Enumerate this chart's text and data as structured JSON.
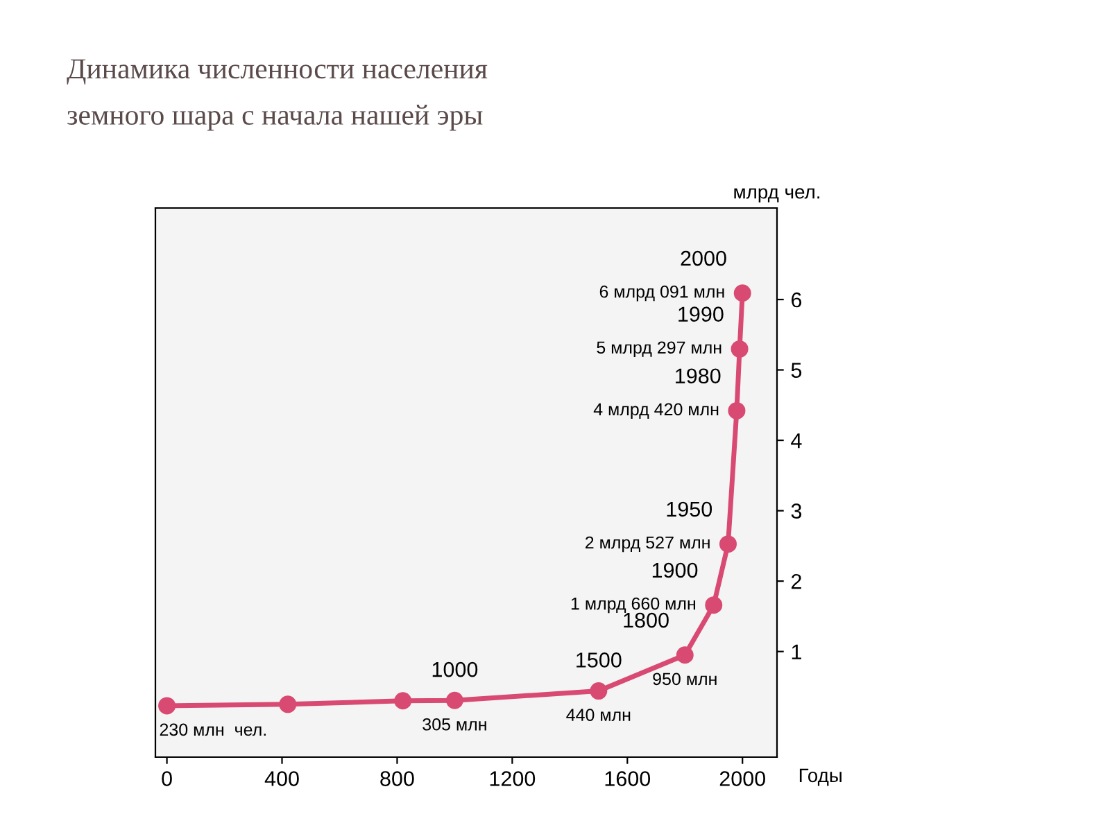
{
  "chart_data": {
    "type": "line",
    "title": "Динамика численности населения\nземного шара с начала нашей эры",
    "xlabel": "Годы",
    "ylabel": "млрд чел.",
    "x": [
      0,
      420,
      820,
      1000,
      1500,
      1800,
      1900,
      1950,
      1980,
      1990,
      2000
    ],
    "series": [
      {
        "color": "#d94a72",
        "values": [
          0.23,
          0.25,
          0.3,
          0.305,
          0.44,
          0.95,
          1.66,
          2.527,
          4.42,
          5.297,
          6.091
        ]
      }
    ],
    "value_labels": [
      "230 млн  чел.",
      null,
      null,
      "305 млн",
      "440 млн",
      "950 млн",
      "1 млрд 660 млн",
      "2 млрд 527 млн",
      "4 млрд 420 млн",
      "5 млрд 297 млн",
      "6 млрд 091 млн"
    ],
    "annotations": [
      {
        "text": "1000",
        "x": 1000,
        "y": 0.305
      },
      {
        "text": "1500",
        "x": 1500,
        "y": 0.44
      },
      {
        "text": "1800",
        "x": 1800,
        "y": 0.95
      },
      {
        "text": "1900",
        "x": 1900,
        "y": 1.66
      },
      {
        "text": "1950",
        "x": 1950,
        "y": 2.527
      },
      {
        "text": "1980",
        "x": 1980,
        "y": 4.42
      },
      {
        "text": "1990",
        "x": 1990,
        "y": 5.297
      },
      {
        "text": "2000",
        "x": 2000,
        "y": 6.091
      }
    ],
    "xlim": [
      -40,
      2120
    ],
    "ylim": [
      -0.5,
      7.3
    ],
    "xticks": [
      0,
      400,
      800,
      1200,
      1600,
      2000
    ],
    "yticks": [
      1,
      2,
      3,
      4,
      5,
      6
    ],
    "marker": "circle",
    "line_style": "solid",
    "grid": false,
    "legend": false
  }
}
